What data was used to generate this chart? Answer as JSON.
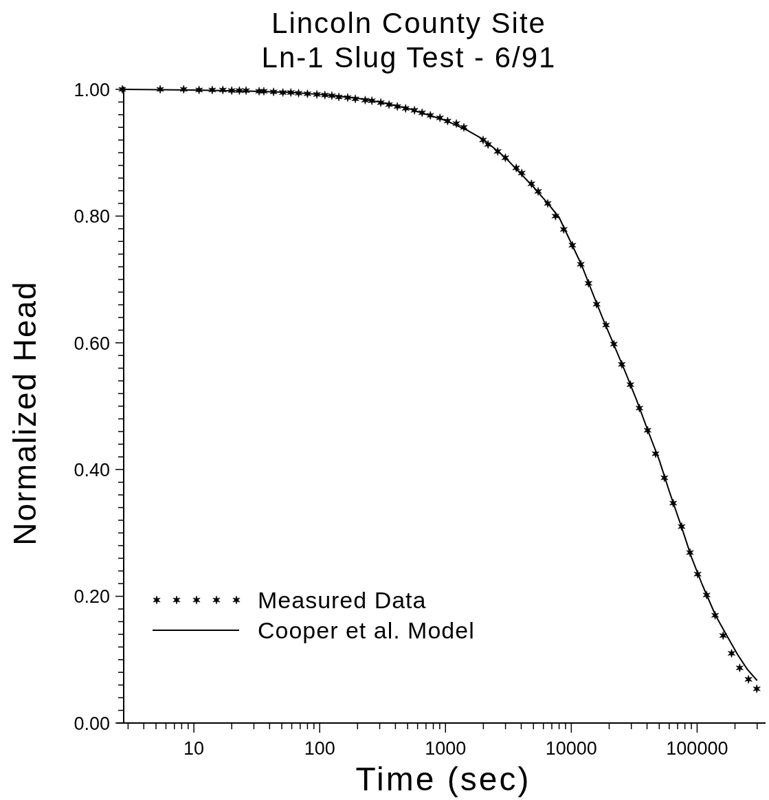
{
  "chart_data": {
    "type": "scatter",
    "title": "Lincoln County Site\nLn-1 Slug Test - 6/91",
    "xlabel": "Time (sec)",
    "ylabel": "Normalized Head",
    "log": "x",
    "grid": false,
    "legend": "bottom left",
    "xlim": [
      2.7,
      350000
    ],
    "ylim": [
      0,
      1
    ],
    "xticks": [
      {
        "value": 3,
        "label": null
      },
      {
        "value": 4,
        "label": null
      },
      {
        "value": 5,
        "label": null
      },
      {
        "value": 6,
        "label": null
      },
      {
        "value": 7,
        "label": null
      },
      {
        "value": 8,
        "label": null
      },
      {
        "value": 9,
        "label": null
      },
      10,
      {
        "value": 20,
        "label": null
      },
      {
        "value": 30,
        "label": null
      },
      {
        "value": 40,
        "label": null
      },
      {
        "value": 50,
        "label": null
      },
      {
        "value": 60,
        "label": null
      },
      {
        "value": 70,
        "label": null
      },
      {
        "value": 80,
        "label": null
      },
      {
        "value": 90,
        "label": null
      },
      100,
      {
        "value": 200,
        "label": null
      },
      {
        "value": 300,
        "label": null
      },
      {
        "value": 400,
        "label": null
      },
      {
        "value": 500,
        "label": null
      },
      {
        "value": 600,
        "label": null
      },
      {
        "value": 700,
        "label": null
      },
      {
        "value": 800,
        "label": null
      },
      {
        "value": 900,
        "label": null
      },
      1000,
      {
        "value": 2000,
        "label": null
      },
      {
        "value": 3000,
        "label": null
      },
      {
        "value": 4000,
        "label": null
      },
      {
        "value": 5000,
        "label": null
      },
      {
        "value": 6000,
        "label": null
      },
      {
        "value": 7000,
        "label": null
      },
      {
        "value": 8000,
        "label": null
      },
      {
        "value": 9000,
        "label": null
      },
      10000,
      {
        "value": 20000,
        "label": null
      },
      {
        "value": 30000,
        "label": null
      },
      {
        "value": 40000,
        "label": null
      },
      {
        "value": 50000,
        "label": null
      },
      {
        "value": 60000,
        "label": null
      },
      {
        "value": 70000,
        "label": null
      },
      {
        "value": 80000,
        "label": null
      },
      {
        "value": 90000,
        "label": null
      },
      100000,
      {
        "value": 200000,
        "label": null
      },
      {
        "value": 300000,
        "label": null
      }
    ],
    "yticks": [
      {
        "value": 0,
        "label": "0.00"
      },
      {
        "value": 0.02,
        "label": null
      },
      {
        "value": 0.04,
        "label": null
      },
      {
        "value": 0.06,
        "label": null
      },
      {
        "value": 0.08,
        "label": null
      },
      {
        "value": 0.1,
        "label": null
      },
      {
        "value": 0.12,
        "label": null
      },
      {
        "value": 0.14,
        "label": null
      },
      {
        "value": 0.16,
        "label": null
      },
      {
        "value": 0.18,
        "label": null
      },
      {
        "value": 0.2,
        "label": "0.20"
      },
      {
        "value": 0.22,
        "label": null
      },
      {
        "value": 0.24,
        "label": null
      },
      {
        "value": 0.26,
        "label": null
      },
      {
        "value": 0.28,
        "label": null
      },
      {
        "value": 0.3,
        "label": null
      },
      {
        "value": 0.32,
        "label": null
      },
      {
        "value": 0.34,
        "label": null
      },
      {
        "value": 0.36,
        "label": null
      },
      {
        "value": 0.38,
        "label": null
      },
      {
        "value": 0.4,
        "label": "0.40"
      },
      {
        "value": 0.42,
        "label": null
      },
      {
        "value": 0.44,
        "label": null
      },
      {
        "value": 0.46,
        "label": null
      },
      {
        "value": 0.48,
        "label": null
      },
      {
        "value": 0.5,
        "label": null
      },
      {
        "value": 0.52,
        "label": null
      },
      {
        "value": 0.54,
        "label": null
      },
      {
        "value": 0.56,
        "label": null
      },
      {
        "value": 0.58,
        "label": null
      },
      {
        "value": 0.6,
        "label": "0.60"
      },
      {
        "value": 0.62,
        "label": null
      },
      {
        "value": 0.64,
        "label": null
      },
      {
        "value": 0.66,
        "label": null
      },
      {
        "value": 0.68,
        "label": null
      },
      {
        "value": 0.7,
        "label": null
      },
      {
        "value": 0.72,
        "label": null
      },
      {
        "value": 0.74,
        "label": null
      },
      {
        "value": 0.76,
        "label": null
      },
      {
        "value": 0.78,
        "label": null
      },
      {
        "value": 0.8,
        "label": "0.80"
      },
      {
        "value": 0.82,
        "label": null
      },
      {
        "value": 0.84,
        "label": null
      },
      {
        "value": 0.86,
        "label": null
      },
      {
        "value": 0.88,
        "label": null
      },
      {
        "value": 0.9,
        "label": null
      },
      {
        "value": 0.92,
        "label": null
      },
      {
        "value": 0.94,
        "label": null
      },
      {
        "value": 0.96,
        "label": null
      },
      {
        "value": 0.98,
        "label": null
      },
      {
        "value": 1,
        "label": "1.00"
      }
    ],
    "series": [
      {
        "name": "Measured Data",
        "marker": "cross",
        "color": "#000000",
        "x": [
          2.7,
          5.4,
          8.3,
          11,
          14,
          17,
          20,
          23,
          26,
          33,
          36,
          43,
          51,
          59,
          68,
          80,
          95,
          110,
          125,
          142,
          167,
          192,
          230,
          260,
          306,
          356,
          414,
          482,
          567,
          652,
          758,
          904,
          1040,
          1220,
          1400,
          1990,
          2180,
          2600,
          2990,
          3650,
          4040,
          4820,
          5450,
          6500,
          7490,
          8710,
          10200,
          11900,
          13700,
          15900,
          18900,
          21800,
          25200,
          29500,
          34800,
          40400,
          46800,
          55000,
          64600,
          75300,
          87800,
          101000,
          119000,
          139000,
          161000,
          188000,
          218000,
          256000,
          298000
        ],
        "values": [
          1.0,
          1.0,
          1.0,
          0.999,
          0.999,
          0.999,
          0.998,
          0.998,
          0.998,
          0.997,
          0.997,
          0.996,
          0.995,
          0.995,
          0.994,
          0.993,
          0.992,
          0.991,
          0.99,
          0.988,
          0.987,
          0.985,
          0.983,
          0.982,
          0.979,
          0.976,
          0.973,
          0.97,
          0.967,
          0.963,
          0.959,
          0.955,
          0.95,
          0.946,
          0.94,
          0.92,
          0.913,
          0.902,
          0.892,
          0.876,
          0.868,
          0.851,
          0.839,
          0.82,
          0.8,
          0.779,
          0.754,
          0.724,
          0.694,
          0.661,
          0.628,
          0.598,
          0.566,
          0.534,
          0.497,
          0.462,
          0.425,
          0.387,
          0.347,
          0.31,
          0.269,
          0.235,
          0.202,
          0.17,
          0.138,
          0.11,
          0.087,
          0.069,
          0.054
        ]
      },
      {
        "name": "Cooper et al. Model",
        "type": "line",
        "marker": "none",
        "line_style": "solid",
        "color": "#000000",
        "x": [
          2.7,
          10,
          30,
          60,
          100,
          200,
          300,
          500,
          1000,
          1500,
          2000,
          3000,
          4000,
          5000,
          6500,
          8000,
          10000,
          12000,
          15000,
          18000,
          22000,
          27000,
          33000,
          40000,
          50000,
          60000,
          75000,
          90000,
          110000,
          140000,
          170000,
          210000,
          250000,
          300000
        ],
        "values": [
          1.0,
          0.999,
          0.997,
          0.995,
          0.992,
          0.986,
          0.98,
          0.97,
          0.951,
          0.935,
          0.921,
          0.892,
          0.866,
          0.846,
          0.82,
          0.798,
          0.757,
          0.724,
          0.675,
          0.636,
          0.595,
          0.553,
          0.51,
          0.465,
          0.415,
          0.366,
          0.31,
          0.262,
          0.218,
          0.17,
          0.14,
          0.108,
          0.085,
          0.067
        ]
      }
    ]
  }
}
